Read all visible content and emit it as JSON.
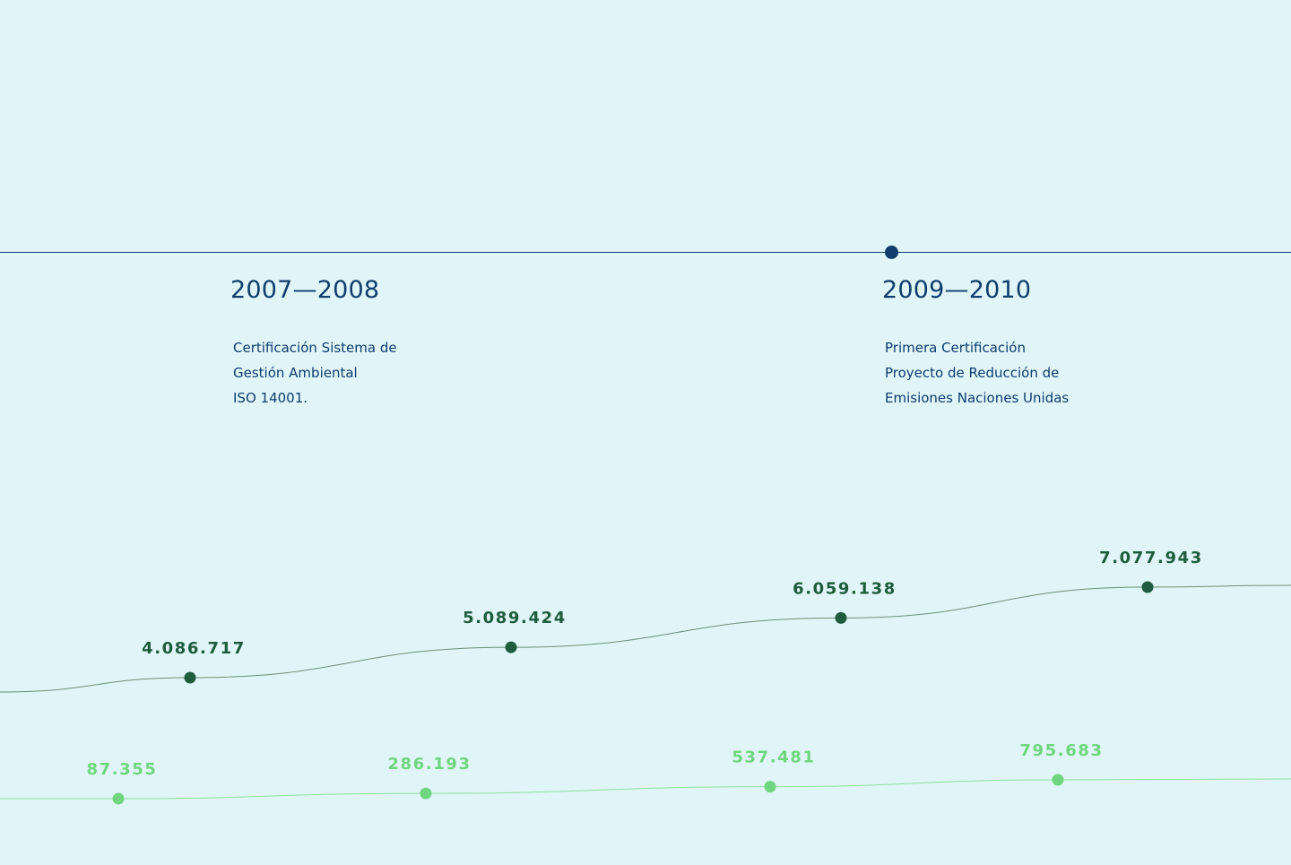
{
  "colors": {
    "background": "#e0f5f7",
    "timeline": "#0f3d6e",
    "dark_series": "#1e5c3d",
    "dark_line": "#6b8f7a",
    "light_series": "#6fd67f",
    "light_line": "#8ee0a0"
  },
  "timeline": {
    "periods": [
      {
        "title": "2007—2008",
        "lines": [
          "Certificación Sistema de",
          "Gestión Ambiental",
          "ISO 14001."
        ]
      },
      {
        "title": "2009—2010",
        "lines": [
          "Primera Certificación",
          "Proyecto de Reducción de",
          "Emisiones Naciones Unidas"
        ]
      }
    ]
  },
  "chart_data": {
    "type": "line",
    "series": [
      {
        "values": [
          4086717,
          5089424,
          6059138,
          7077943
        ],
        "labels": [
          "4.086.717",
          "5.089.424",
          "6.059.138",
          "7.077.943"
        ]
      },
      {
        "values": [
          87355,
          286193,
          537481,
          795683
        ],
        "labels": [
          "87.355",
          "286.193",
          "537.481",
          "795.683"
        ]
      }
    ]
  }
}
